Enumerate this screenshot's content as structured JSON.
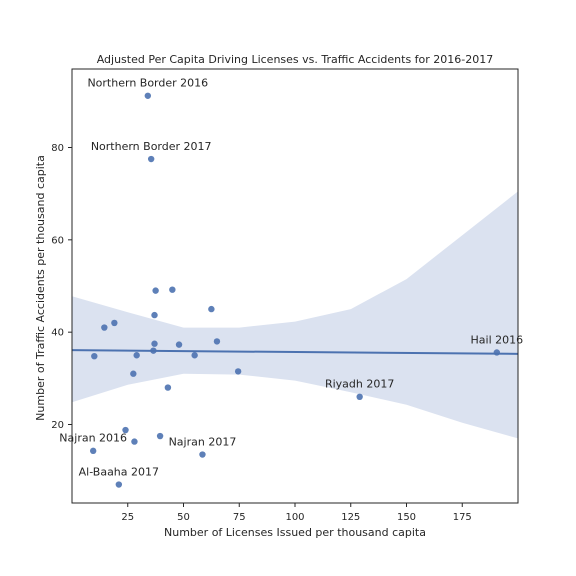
{
  "chart_data": {
    "type": "scatter",
    "title": "Adjusted Per Capita Driving Licenses vs. Traffic Accidents for 2016-2017",
    "xlabel": "Number of Licenses Issued per thousand capita",
    "ylabel": "Number of Traffic Accidents per thousand capita",
    "xlim": [
      0,
      200
    ],
    "ylim": [
      3,
      97
    ],
    "x_ticks": [
      25,
      50,
      75,
      100,
      125,
      150,
      175
    ],
    "y_ticks": [
      20,
      40,
      60,
      80
    ],
    "grid": false,
    "colors": {
      "points": "#4c72b0",
      "line": "#4c72b0",
      "band": "#dbe2f0",
      "axes": "#262626"
    },
    "points": [
      {
        "x": 34,
        "y": 91.2
      },
      {
        "x": 35.5,
        "y": 77.5
      },
      {
        "x": 37.5,
        "y": 49
      },
      {
        "x": 45,
        "y": 49.2
      },
      {
        "x": 62.5,
        "y": 45
      },
      {
        "x": 37,
        "y": 43.7
      },
      {
        "x": 19,
        "y": 42
      },
      {
        "x": 14.5,
        "y": 41
      },
      {
        "x": 65,
        "y": 38
      },
      {
        "x": 37,
        "y": 37.5
      },
      {
        "x": 48,
        "y": 37.3
      },
      {
        "x": 36.5,
        "y": 36
      },
      {
        "x": 10,
        "y": 34.8
      },
      {
        "x": 29,
        "y": 35
      },
      {
        "x": 55,
        "y": 35
      },
      {
        "x": 74.5,
        "y": 31.5
      },
      {
        "x": 27.5,
        "y": 31
      },
      {
        "x": 43,
        "y": 28
      },
      {
        "x": 190.5,
        "y": 35.6
      },
      {
        "x": 129,
        "y": 26
      },
      {
        "x": 24,
        "y": 18.8
      },
      {
        "x": 39.5,
        "y": 17.5
      },
      {
        "x": 28,
        "y": 16.3
      },
      {
        "x": 9.5,
        "y": 14.3
      },
      {
        "x": 58.5,
        "y": 13.5
      },
      {
        "x": 21,
        "y": 7
      }
    ],
    "regression": {
      "x": [
        0,
        200
      ],
      "y": [
        36.1,
        35.3
      ],
      "ci_x": [
        0,
        25,
        50,
        75,
        100,
        125,
        150,
        175,
        200
      ],
      "ci_lower": [
        24.8,
        28.6,
        31.0,
        30.8,
        29.5,
        27.0,
        24.3,
        20.4,
        17.0
      ],
      "ci_upper": [
        47.8,
        44.3,
        41.0,
        41.0,
        42.3,
        45.0,
        51.5,
        61.0,
        70.5
      ]
    },
    "annotations": [
      {
        "text": "Northern Border 2016",
        "x": 34,
        "y": 93.2
      },
      {
        "text": "Northern Border 2017",
        "x": 35.5,
        "y": 79.5
      },
      {
        "text": "Hail 2016",
        "x": 190.5,
        "y": 37.6
      },
      {
        "text": "Riyadh 2017",
        "x": 129,
        "y": 28
      },
      {
        "text": "Najran 2016",
        "x": 9.5,
        "y": 16.3
      },
      {
        "text": "Najran 2017",
        "x": 58.5,
        "y": 15.5
      },
      {
        "text": "Al-Baaha 2017",
        "x": 21,
        "y": 9
      }
    ]
  }
}
